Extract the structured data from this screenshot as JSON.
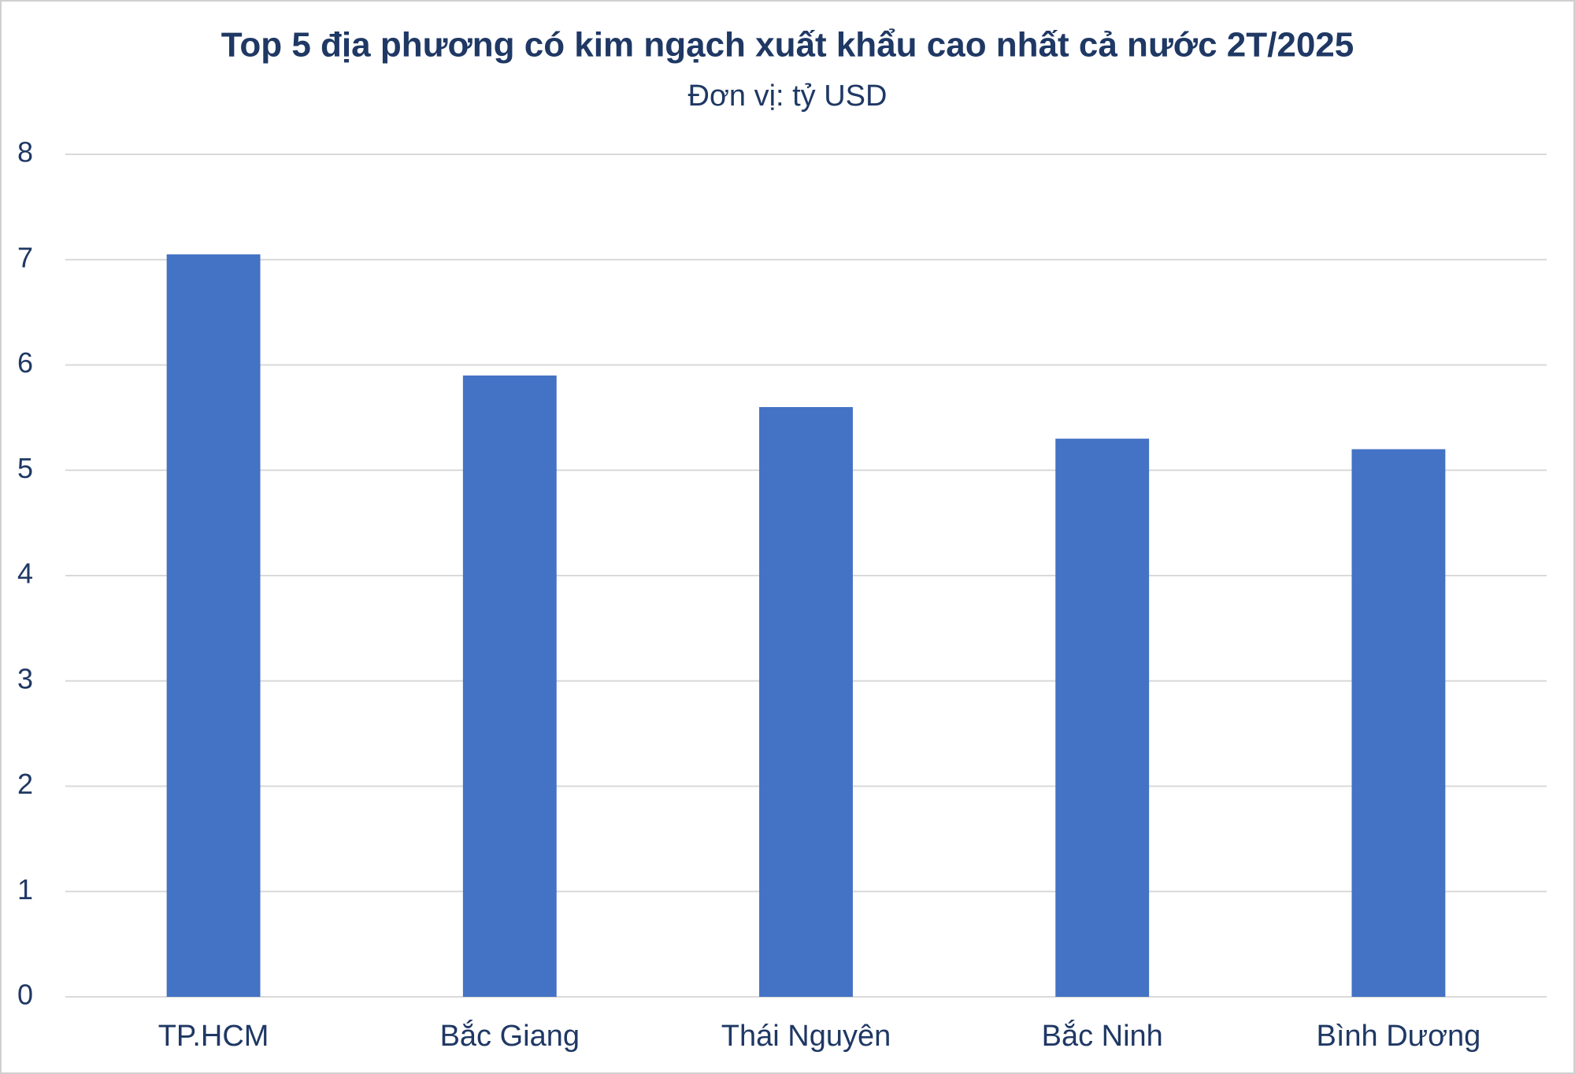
{
  "chart_data": {
    "type": "bar",
    "title": "Top 5 địa phương có kim ngạch xuất khẩu cao nhất cả nước 2T/2025",
    "subtitle": "Đơn vị: tỷ USD",
    "categories": [
      "TP.HCM",
      "Bắc Giang",
      "Thái Nguyên",
      "Bắc Ninh",
      "Bình Dương"
    ],
    "values": [
      7.05,
      5.9,
      5.6,
      5.3,
      5.2
    ],
    "color": "#4472c4",
    "ylim": [
      0,
      8
    ],
    "yticks": [
      0,
      1,
      2,
      3,
      4,
      5,
      6,
      7,
      8
    ],
    "grid": true
  }
}
